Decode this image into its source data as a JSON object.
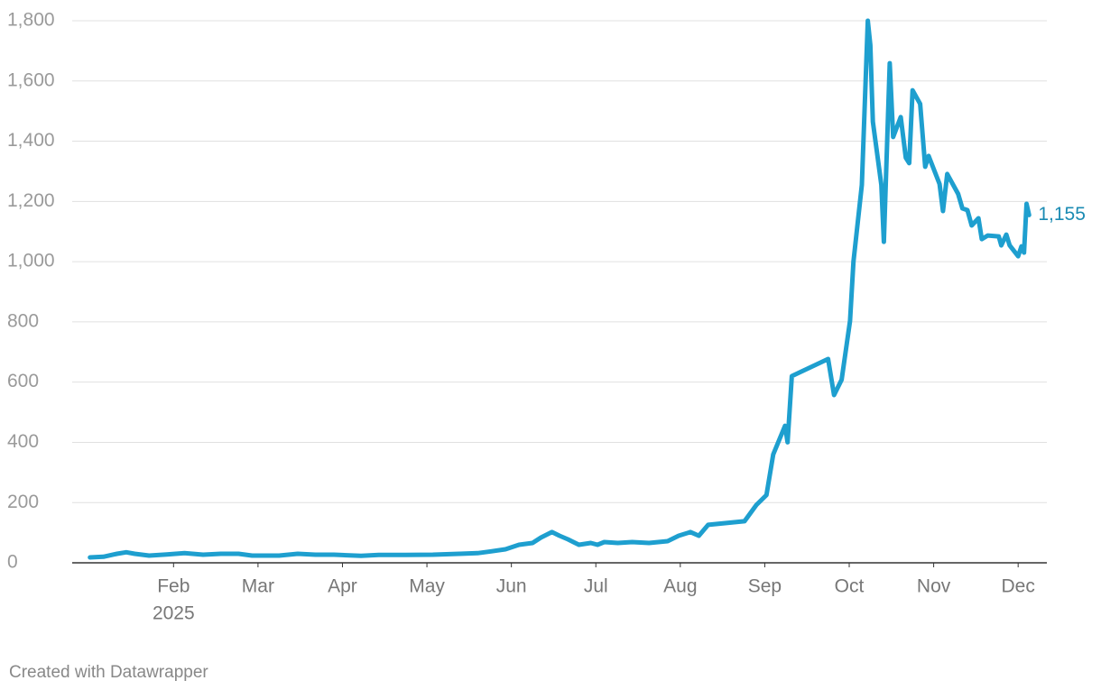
{
  "chart_data": {
    "type": "line",
    "x": [
      0.01,
      0.17,
      0.33,
      0.44,
      0.54,
      0.71,
      0.92,
      1.13,
      1.35,
      1.56,
      1.77,
      1.93,
      2.25,
      2.47,
      2.68,
      2.9,
      3.22,
      3.43,
      3.75,
      4.07,
      4.39,
      4.6,
      4.76,
      4.93,
      5.09,
      5.25,
      5.35,
      5.48,
      5.57,
      5.67,
      5.8,
      5.94,
      6.02,
      6.1,
      6.26,
      6.43,
      6.63,
      6.85,
      6.98,
      7.12,
      7.22,
      7.33,
      7.76,
      7.9,
      8.02,
      8.1,
      8.24,
      8.27,
      8.32,
      8.75,
      8.82,
      8.91,
      9.01,
      9.05,
      9.15,
      9.22,
      9.25,
      9.28,
      9.38,
      9.41,
      9.48,
      9.52,
      9.61,
      9.67,
      9.71,
      9.75,
      9.84,
      9.9,
      9.94,
      10.07,
      10.11,
      10.16,
      10.29,
      10.34,
      10.4,
      10.45,
      10.53,
      10.57,
      10.64,
      10.77,
      10.8,
      10.86,
      10.9,
      11.0,
      11.04,
      11.07,
      11.1,
      11.13
    ],
    "series": [
      {
        "color": "#1e9fcf",
        "values": [
          18,
          20,
          30,
          35,
          30,
          24,
          28,
          32,
          27,
          30,
          30,
          24,
          24,
          30,
          27,
          27,
          23,
          26,
          26,
          27,
          30,
          32,
          38,
          45,
          60,
          66,
          84,
          102,
          90,
          78,
          60,
          66,
          60,
          69,
          66,
          69,
          66,
          72,
          90,
          102,
          90,
          126,
          138,
          192,
          225,
          360,
          455,
          400,
          620,
          677,
          557,
          608,
          803,
          1000,
          1255,
          1800,
          1719,
          1465,
          1255,
          1066,
          1659,
          1414,
          1480,
          1345,
          1327,
          1569,
          1524,
          1315,
          1351,
          1258,
          1168,
          1291,
          1225,
          1177,
          1171,
          1120,
          1144,
          1075,
          1087,
          1084,
          1054,
          1090,
          1054,
          1018,
          1051,
          1030,
          1192,
          1155
        ],
        "value_labels": [
          null,
          null,
          null,
          null,
          null,
          null,
          null,
          null,
          null,
          null,
          null,
          null,
          null,
          null,
          null,
          null,
          null,
          null,
          null,
          null,
          null,
          null,
          null,
          null,
          null,
          null,
          null,
          null,
          null,
          null,
          null,
          null,
          null,
          null,
          null,
          null,
          null,
          null,
          null,
          null,
          null,
          null,
          null,
          null,
          null,
          null,
          null,
          null,
          null,
          null,
          null,
          null,
          null,
          null,
          null,
          null,
          null,
          null,
          null,
          null,
          null,
          null,
          null,
          null,
          null,
          null,
          null,
          null,
          null,
          null,
          null,
          null,
          null,
          null,
          null,
          null,
          null,
          null,
          null,
          null,
          null,
          null,
          null,
          null,
          null,
          null,
          null,
          "1,155"
        ]
      }
    ],
    "xlim": [
      -0.2,
      11.34
    ],
    "xticks": [
      {
        "value": 1,
        "label": "Feb"
      },
      {
        "value": 2,
        "label": "Mar"
      },
      {
        "value": 3,
        "label": "Apr"
      },
      {
        "value": 4,
        "label": "May"
      },
      {
        "value": 5,
        "label": "Jun"
      },
      {
        "value": 6,
        "label": "Jul"
      },
      {
        "value": 7,
        "label": "Aug"
      },
      {
        "value": 8,
        "label": "Sep"
      },
      {
        "value": 9,
        "label": "Oct"
      },
      {
        "value": 10,
        "label": "Nov"
      },
      {
        "value": 11,
        "label": "Dec"
      }
    ],
    "x_year_label": "2025",
    "ylim": [
      0,
      1800
    ],
    "yticks": [
      0,
      200,
      400,
      600,
      800,
      {
        "value": 1000,
        "label": "1,000"
      },
      {
        "value": 1200,
        "label": "1,200"
      },
      {
        "value": 1400,
        "label": "1,400"
      },
      {
        "value": 1600,
        "label": "1,600"
      },
      {
        "value": 1800,
        "label": "1,800"
      }
    ],
    "grid": true,
    "credit": "Created with Datawrapper"
  }
}
